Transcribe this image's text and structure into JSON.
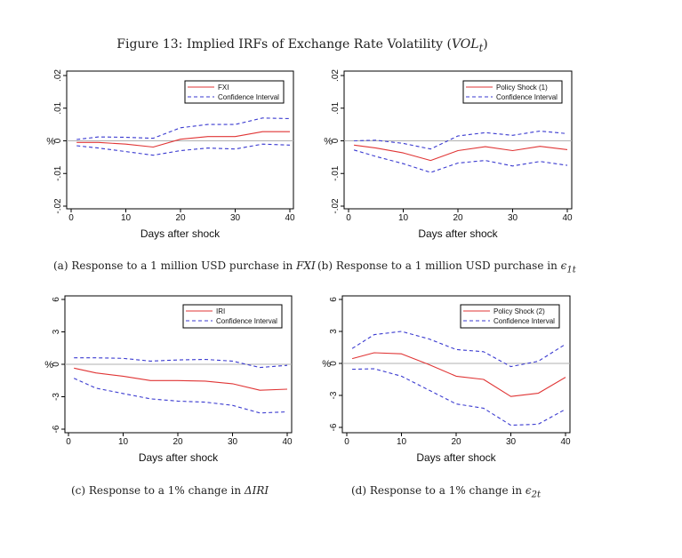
{
  "figure": {
    "title_prefix": "Figure 13: Implied IRFs of Exchange Rate Volatility (",
    "title_var": "VOL",
    "title_sub": "t",
    "title_suffix": ")"
  },
  "captions": [
    {
      "text": "(a) Response to a 1 million USD purchase in ",
      "var": "FXI",
      "sub": ""
    },
    {
      "text": "(b) Response to a 1 million USD purchase in ",
      "var": "ϵ",
      "sub": "1t"
    },
    {
      "text": "(c) Response to a 1% change in ",
      "var": "ΔIRI",
      "sub": ""
    },
    {
      "text": "(d) Response to a 1% change in ",
      "var": "ϵ",
      "sub": "2t"
    }
  ],
  "colors": {
    "irf": "#e03535",
    "ci": "#3a3ad0",
    "zero": "#b0b0b0"
  },
  "chart_data": [
    {
      "type": "line",
      "xlabel": "Days after shock",
      "ylabel": "%",
      "xlim": [
        0,
        40
      ],
      "ylim": [
        -0.02,
        0.02
      ],
      "xticks": [
        "0",
        "10",
        "20",
        "30",
        "40"
      ],
      "xtick_values": [
        0,
        10,
        20,
        30,
        40
      ],
      "yticks": [
        "-.02",
        "-.01",
        "0",
        ".01",
        ".02"
      ],
      "ytick_values": [
        -0.02,
        -0.01,
        0,
        0.01,
        0.02
      ],
      "legend": [
        "FXI",
        "Confidence Interval"
      ],
      "legend_position": "top-right",
      "x": [
        1,
        5,
        10,
        15,
        20,
        25,
        30,
        35,
        40
      ],
      "series": [
        {
          "name": "FXI",
          "values": [
            -0.0005,
            -0.0005,
            -0.001,
            -0.0019,
            0.0005,
            0.0013,
            0.0013,
            0.0028,
            0.0028
          ]
        },
        {
          "name": "Confidence Interval (upper)",
          "values": [
            0.0004,
            0.0012,
            0.0011,
            0.0008,
            0.004,
            0.005,
            0.005,
            0.007,
            0.0068
          ]
        },
        {
          "name": "Confidence Interval (lower)",
          "values": [
            -0.0015,
            -0.0022,
            -0.0033,
            -0.0044,
            -0.003,
            -0.0022,
            -0.0025,
            -0.001,
            -0.0013
          ]
        }
      ]
    },
    {
      "type": "line",
      "xlabel": "Days after shock",
      "ylabel": "%",
      "xlim": [
        0,
        40
      ],
      "ylim": [
        -0.02,
        0.02
      ],
      "xticks": [
        "0",
        "10",
        "20",
        "30",
        "40"
      ],
      "xtick_values": [
        0,
        10,
        20,
        30,
        40
      ],
      "yticks": [
        "-.02",
        "-.01",
        "0",
        ".01",
        ".02"
      ],
      "ytick_values": [
        -0.02,
        -0.01,
        0,
        0.01,
        0.02
      ],
      "legend": [
        "Policy Shock (1)",
        "Confidence Interval"
      ],
      "legend_position": "top-right",
      "x": [
        1,
        5,
        10,
        15,
        20,
        25,
        30,
        35,
        40
      ],
      "series": [
        {
          "name": "Policy Shock (1)",
          "values": [
            -0.0013,
            -0.0022,
            -0.0037,
            -0.006,
            -0.003,
            -0.0018,
            -0.003,
            -0.0017,
            -0.0027
          ]
        },
        {
          "name": "Confidence Interval (upper)",
          "values": [
            0,
            0.0002,
            -0.0008,
            -0.0025,
            0.0015,
            0.0025,
            0.0017,
            0.003,
            0.0022
          ]
        },
        {
          "name": "Confidence Interval (lower)",
          "values": [
            -0.0028,
            -0.0048,
            -0.007,
            -0.0097,
            -0.0068,
            -0.006,
            -0.0077,
            -0.0063,
            -0.0075
          ]
        }
      ]
    },
    {
      "type": "line",
      "xlabel": "Days after shock",
      "ylabel": "%",
      "xlim": [
        0,
        40
      ],
      "ylim": [
        -6,
        6
      ],
      "xticks": [
        "0",
        "10",
        "20",
        "30",
        "40"
      ],
      "xtick_values": [
        0,
        10,
        20,
        30,
        40
      ],
      "yticks": [
        "-6",
        "-3",
        "0",
        "3",
        "6"
      ],
      "ytick_values": [
        -6,
        -3,
        0,
        3,
        6
      ],
      "legend": [
        "IRI",
        "Confidence Interval"
      ],
      "legend_position": "top-right",
      "x": [
        1,
        5,
        10,
        15,
        20,
        25,
        30,
        35,
        40
      ],
      "series": [
        {
          "name": "IRI",
          "values": [
            -0.35,
            -0.8,
            -1.1,
            -1.5,
            -1.5,
            -1.55,
            -1.8,
            -2.4,
            -2.3
          ]
        },
        {
          "name": "Confidence Interval (upper)",
          "values": [
            0.6,
            0.6,
            0.55,
            0.3,
            0.4,
            0.45,
            0.3,
            -0.3,
            -0.1
          ]
        },
        {
          "name": "Confidence Interval (lower)",
          "values": [
            -1.3,
            -2.2,
            -2.7,
            -3.2,
            -3.4,
            -3.5,
            -3.8,
            -4.5,
            -4.4
          ]
        }
      ]
    },
    {
      "type": "line",
      "xlabel": "Days after shock",
      "ylabel": "%",
      "xlim": [
        0,
        40
      ],
      "ylim": [
        -6,
        6
      ],
      "xticks": [
        "0",
        "10",
        "20",
        "30",
        "40"
      ],
      "xtick_values": [
        0,
        10,
        20,
        30,
        40
      ],
      "yticks": [
        "-6",
        "-3",
        "0",
        "3",
        "6"
      ],
      "ytick_values": [
        -6,
        -3,
        0,
        3,
        6
      ],
      "legend": [
        "Policy Shock (2)",
        "Confidence Interval"
      ],
      "legend_position": "top-right",
      "x": [
        1,
        5,
        10,
        15,
        20,
        25,
        30,
        35,
        40
      ],
      "series": [
        {
          "name": "Policy Shock (2)",
          "values": [
            0.45,
            1.0,
            0.9,
            -0.1,
            -1.2,
            -1.5,
            -3.1,
            -2.8,
            -1.3
          ]
        },
        {
          "name": "Confidence Interval (upper)",
          "values": [
            1.4,
            2.7,
            3.0,
            2.3,
            1.3,
            1.1,
            -0.3,
            0.2,
            1.8
          ]
        },
        {
          "name": "Confidence Interval (lower)",
          "values": [
            -0.55,
            -0.5,
            -1.2,
            -2.5,
            -3.8,
            -4.2,
            -5.8,
            -5.7,
            -4.3
          ]
        }
      ]
    }
  ]
}
